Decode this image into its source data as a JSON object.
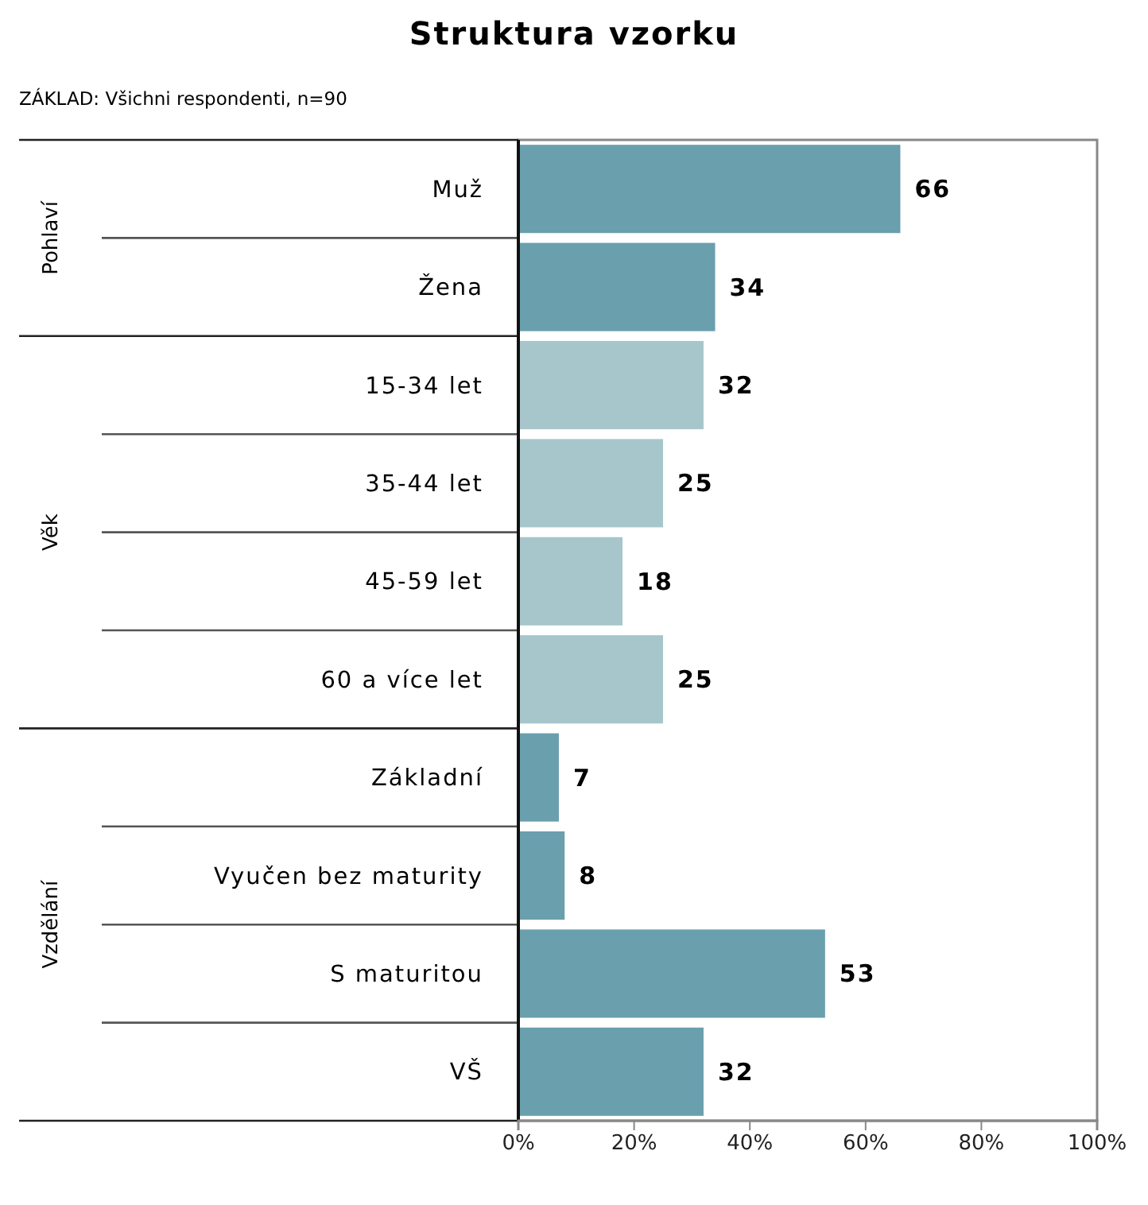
{
  "chart_data": {
    "type": "bar",
    "orientation": "horizontal",
    "title": "Struktura vzorku",
    "subtitle": "ZÁKLAD: Všichni respondenti, n=90",
    "categories": [
      "Muž",
      "Žena",
      "15-34 let",
      "35-44 let",
      "45-59 let",
      "60 a více let",
      "Základní",
      "Vyučen bez maturity",
      "S maturitou",
      "VŠ"
    ],
    "values": [
      66,
      34,
      32,
      25,
      18,
      25,
      7,
      8,
      53,
      32
    ],
    "colors": [
      "#6a9fad",
      "#6a9fad",
      "#a7c6cb",
      "#a7c6cb",
      "#a7c6cb",
      "#a7c6cb",
      "#6a9fae",
      "#6a9fae",
      "#6a9fae",
      "#6a9fae"
    ],
    "data_labels": true,
    "xlim": [
      0,
      100
    ],
    "xticks": [
      {
        "value": 0,
        "label": "0%"
      },
      {
        "value": 20,
        "label": "20%"
      },
      {
        "value": 40,
        "label": "40%"
      },
      {
        "value": 60,
        "label": "60%"
      },
      {
        "value": 80,
        "label": "80%"
      },
      {
        "value": 100,
        "label": "100%"
      }
    ],
    "annotations": [
      "Pohlaví",
      "Věk",
      "Vzdělání"
    ],
    "grid": false
  }
}
